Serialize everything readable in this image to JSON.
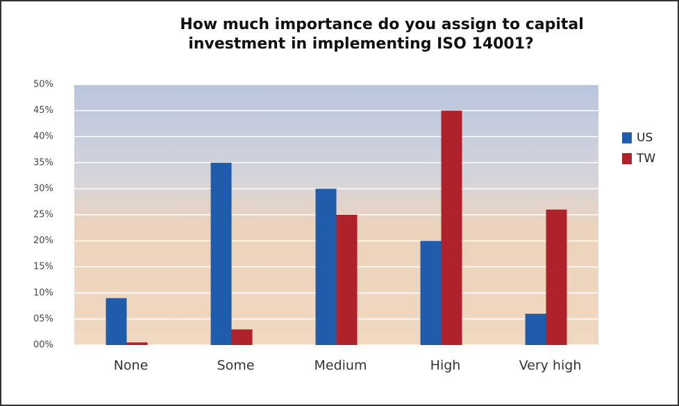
{
  "chart_data": {
    "type": "bar",
    "title": [
      "How much importance do you assign to capital",
      "investment in implementing ISO 14001?"
    ],
    "categories": [
      "None",
      "Some",
      "Medium",
      "High",
      "Very high"
    ],
    "series": [
      {
        "name": "US",
        "color": "#1f5cab",
        "values": [
          9,
          35,
          30,
          20,
          6
        ]
      },
      {
        "name": "TW",
        "color": "#b0222b",
        "values": [
          0.5,
          3,
          25,
          45,
          26
        ]
      }
    ],
    "ylim": [
      0,
      50
    ],
    "yticks": [
      {
        "value": 0,
        "label": "00%"
      },
      {
        "value": 5,
        "label": "05%"
      },
      {
        "value": 10,
        "label": "10%"
      },
      {
        "value": 15,
        "label": "15%"
      },
      {
        "value": 20,
        "label": "20%"
      },
      {
        "value": 25,
        "label": "25%"
      },
      {
        "value": 30,
        "label": "30%"
      },
      {
        "value": 35,
        "label": "35%"
      },
      {
        "value": 40,
        "label": "40%"
      },
      {
        "value": 45,
        "label": "45%"
      },
      {
        "value": 50,
        "label": "50%"
      }
    ],
    "grid": true,
    "legend": "right"
  }
}
